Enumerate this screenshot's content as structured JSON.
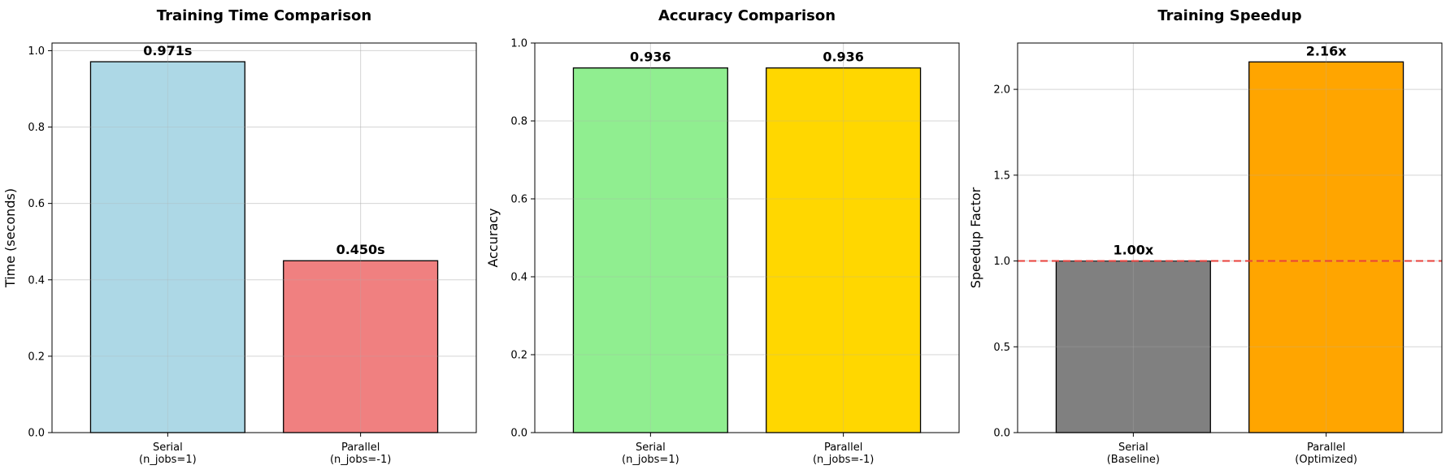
{
  "chart_data": [
    {
      "type": "bar",
      "title": "Training Time Comparison",
      "xlabel": "",
      "ylabel": "Time (seconds)",
      "categories": [
        "Serial\n(n_jobs=1)",
        "Parallel\n(n_jobs=-1)"
      ],
      "values": [
        0.971,
        0.45
      ],
      "value_labels": [
        "0.971s",
        "0.450s"
      ],
      "colors": [
        "#add8e6",
        "#f08080"
      ],
      "ylim": [
        0,
        1.02
      ],
      "yticks": [
        0.0,
        0.2,
        0.4,
        0.6,
        0.8,
        1.0
      ],
      "ytick_labels": [
        "0.0",
        "0.2",
        "0.4",
        "0.6",
        "0.8",
        "1.0"
      ],
      "grid": true
    },
    {
      "type": "bar",
      "title": "Accuracy Comparison",
      "xlabel": "",
      "ylabel": "Accuracy",
      "categories": [
        "Serial\n(n_jobs=1)",
        "Parallel\n(n_jobs=-1)"
      ],
      "values": [
        0.936,
        0.936
      ],
      "value_labels": [
        "0.936",
        "0.936"
      ],
      "colors": [
        "#90ee90",
        "#ffd700"
      ],
      "ylim": [
        0,
        1.0
      ],
      "yticks": [
        0.0,
        0.2,
        0.4,
        0.6,
        0.8,
        1.0
      ],
      "ytick_labels": [
        "0.0",
        "0.2",
        "0.4",
        "0.6",
        "0.8",
        "1.0"
      ],
      "grid": true
    },
    {
      "type": "bar",
      "title": "Training Speedup",
      "xlabel": "",
      "ylabel": "Speedup Factor",
      "categories": [
        "Serial\n(Baseline)",
        "Parallel\n(Optimized)"
      ],
      "values": [
        1.0,
        2.16
      ],
      "value_labels": [
        "1.00x",
        "2.16x"
      ],
      "colors": [
        "#808080",
        "#ffa500"
      ],
      "ylim": [
        0,
        2.27
      ],
      "yticks": [
        0.0,
        0.5,
        1.0,
        1.5,
        2.0
      ],
      "ytick_labels": [
        "0.0",
        "0.5",
        "1.0",
        "1.5",
        "2.0"
      ],
      "grid": true,
      "reference_line": {
        "y": 1.0,
        "style": "dashed",
        "color": "#e8413b"
      }
    }
  ]
}
